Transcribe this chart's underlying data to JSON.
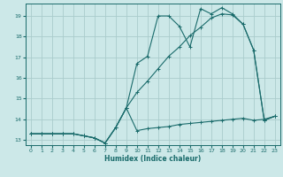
{
  "title": "",
  "xlabel": "Humidex (Indice chaleur)",
  "ylabel": "",
  "bg_color": "#cce8e8",
  "grid_color": "#aacccc",
  "line_color": "#1a6b6b",
  "xlim": [
    -0.5,
    23.5
  ],
  "ylim": [
    12.75,
    19.6
  ],
  "yticks": [
    13,
    14,
    15,
    16,
    17,
    18,
    19
  ],
  "xticks": [
    0,
    1,
    2,
    3,
    4,
    5,
    6,
    7,
    8,
    9,
    10,
    11,
    12,
    13,
    14,
    15,
    16,
    17,
    18,
    19,
    20,
    21,
    22,
    23
  ],
  "series1_x": [
    0,
    1,
    2,
    3,
    4,
    5,
    6,
    7,
    8,
    9,
    10,
    11,
    12,
    13,
    14,
    15,
    16,
    17,
    18,
    19,
    20,
    21,
    22,
    23
  ],
  "series1_y": [
    13.3,
    13.3,
    13.3,
    13.3,
    13.3,
    13.2,
    13.1,
    12.85,
    13.6,
    14.55,
    13.45,
    13.55,
    13.6,
    13.65,
    13.75,
    13.8,
    13.85,
    13.9,
    13.95,
    14.0,
    14.05,
    13.95,
    14.0,
    14.15
  ],
  "series2_x": [
    0,
    1,
    2,
    3,
    4,
    5,
    6,
    7,
    8,
    9,
    10,
    11,
    12,
    13,
    14,
    15,
    16,
    17,
    18,
    19,
    20,
    21,
    22,
    23
  ],
  "series2_y": [
    13.3,
    13.3,
    13.3,
    13.3,
    13.3,
    13.2,
    13.1,
    12.85,
    13.6,
    14.55,
    16.7,
    17.05,
    19.0,
    19.0,
    18.5,
    17.5,
    19.35,
    19.1,
    19.4,
    19.1,
    18.6,
    17.35,
    13.95,
    14.15
  ],
  "series3_x": [
    0,
    1,
    2,
    3,
    4,
    5,
    6,
    7,
    8,
    9,
    10,
    11,
    12,
    13,
    14,
    15,
    16,
    17,
    18,
    19,
    20,
    21,
    22,
    23
  ],
  "series3_y": [
    13.3,
    13.3,
    13.3,
    13.3,
    13.3,
    13.2,
    13.1,
    12.85,
    13.6,
    14.55,
    15.3,
    15.85,
    16.45,
    17.05,
    17.5,
    18.05,
    18.45,
    18.9,
    19.1,
    19.05,
    18.6,
    17.35,
    13.95,
    14.15
  ]
}
